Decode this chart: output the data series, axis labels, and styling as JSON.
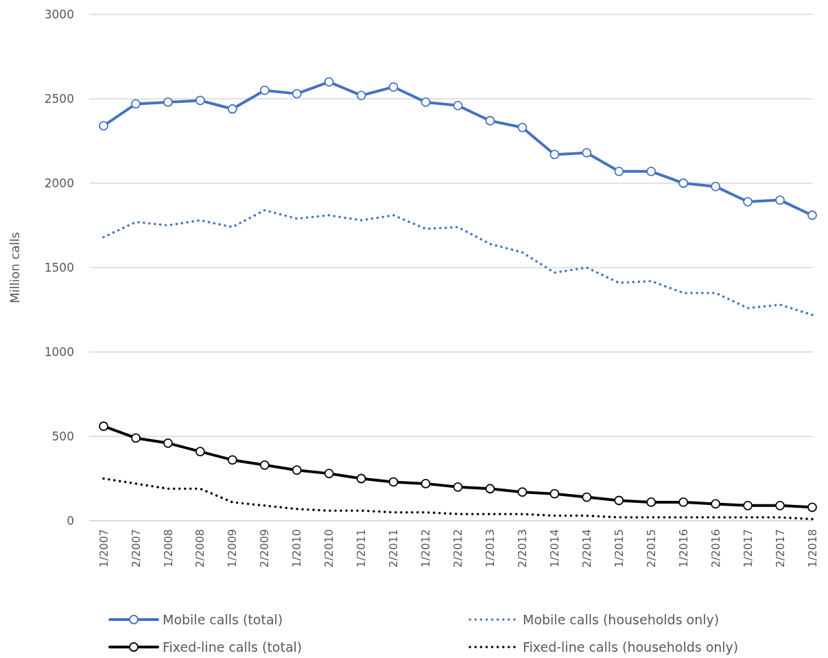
{
  "chart_data": {
    "type": "line",
    "ylabel": "Million calls",
    "categories": [
      "1/2007",
      "2/2007",
      "1/2008",
      "2/2008",
      "1/2009",
      "2/2009",
      "1/2010",
      "2/2010",
      "1/2011",
      "2/2011",
      "1/2012",
      "2/2012",
      "1/2013",
      "2/2013",
      "1/2014",
      "2/2014",
      "1/2015",
      "2/2015",
      "1/2016",
      "2/2016",
      "1/2017",
      "2/2017",
      "1/2018"
    ],
    "series": [
      {
        "name": "Mobile calls (total)",
        "color": "#4472c4",
        "marker": "circle",
        "line_style": "solid",
        "values": [
          2340,
          2470,
          2480,
          2490,
          2440,
          2550,
          2530,
          2600,
          2520,
          2570,
          2480,
          2460,
          2370,
          2330,
          2170,
          2180,
          2070,
          2070,
          2000,
          1980,
          1890,
          1900,
          1810
        ]
      },
      {
        "name": "Mobile calls (households only)",
        "color": "#4472c4",
        "marker": "none",
        "line_style": "dotted",
        "values": [
          1680,
          1770,
          1750,
          1780,
          1740,
          1840,
          1790,
          1810,
          1780,
          1810,
          1730,
          1740,
          1640,
          1590,
          1470,
          1500,
          1410,
          1420,
          1350,
          1350,
          1260,
          1280,
          1220
        ]
      },
      {
        "name": "Fixed-line calls (total)",
        "color": "#000000",
        "marker": "circle",
        "line_style": "solid",
        "values": [
          560,
          490,
          460,
          410,
          360,
          330,
          300,
          280,
          250,
          230,
          220,
          200,
          190,
          170,
          160,
          140,
          120,
          110,
          110,
          100,
          90,
          90,
          80
        ]
      },
      {
        "name": "Fixed-line calls (households only)",
        "color": "#000000",
        "marker": "none",
        "line_style": "dotted",
        "values": [
          250,
          220,
          190,
          190,
          110,
          90,
          70,
          60,
          60,
          50,
          50,
          40,
          40,
          40,
          30,
          30,
          20,
          20,
          20,
          20,
          20,
          20,
          10
        ]
      }
    ],
    "ylim": [
      0,
      3000
    ],
    "yticks": [
      0,
      500,
      1000,
      1500,
      2000,
      2500,
      3000
    ],
    "grid": "y",
    "legend": "bottom"
  }
}
